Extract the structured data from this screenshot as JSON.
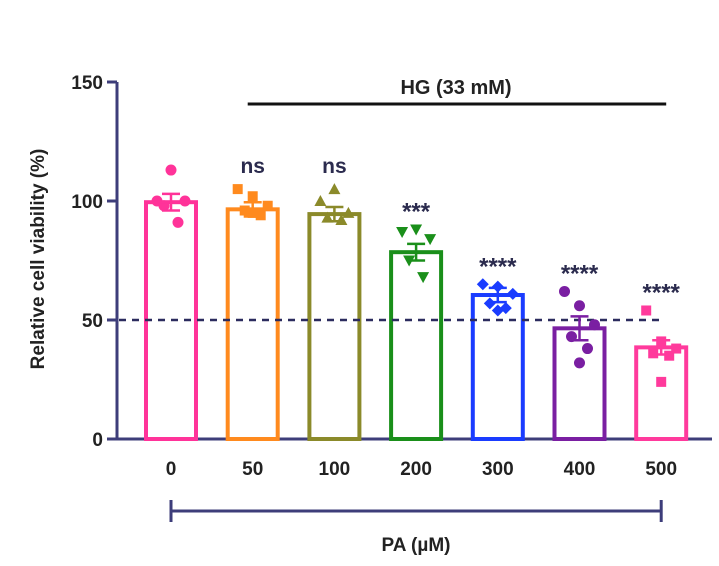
{
  "chart_data": {
    "type": "bar",
    "ylabel": "Relative cell viability (%)",
    "xlabel": "PA (µM)",
    "ylim": [
      0,
      150
    ],
    "yticks": [
      "0",
      "50",
      "100",
      "150"
    ],
    "categories": [
      "0",
      "50",
      "100",
      "200",
      "300",
      "400",
      "500"
    ],
    "values": [
      99.5,
      96.5,
      94.5,
      78.5,
      60.5,
      46.5,
      38.5
    ],
    "errors": [
      3.5,
      3.0,
      3.0,
      3.5,
      3.0,
      5.0,
      3.0
    ],
    "significance": [
      "",
      "ns",
      "ns",
      "***",
      "****",
      "****",
      "****"
    ],
    "colors": [
      "#ff3399",
      "#ff8a1e",
      "#8b8a2a",
      "#1a8f1a",
      "#1a3cff",
      "#7a1fa2",
      "#ff3a9c"
    ],
    "markers": [
      "circle",
      "square",
      "triangle-up",
      "triangle-down",
      "diamond",
      "circle",
      "square"
    ],
    "points": [
      [
        113,
        100,
        100,
        98,
        91
      ],
      [
        105,
        102,
        98,
        96,
        94,
        95
      ],
      [
        105,
        100,
        95,
        93,
        92
      ],
      [
        88,
        87,
        84,
        75,
        68
      ],
      [
        65,
        64,
        61,
        57,
        55,
        54
      ],
      [
        62,
        56,
        48,
        43,
        38,
        32
      ],
      [
        54,
        41,
        38,
        36,
        35,
        24
      ]
    ],
    "reference_line": 50,
    "bracket_label": "HG (33 mM)",
    "bracket_range": [
      "50",
      "500"
    ],
    "x_bracket_range": [
      "0",
      "500"
    ],
    "axis_color": "#3d3d7a"
  }
}
